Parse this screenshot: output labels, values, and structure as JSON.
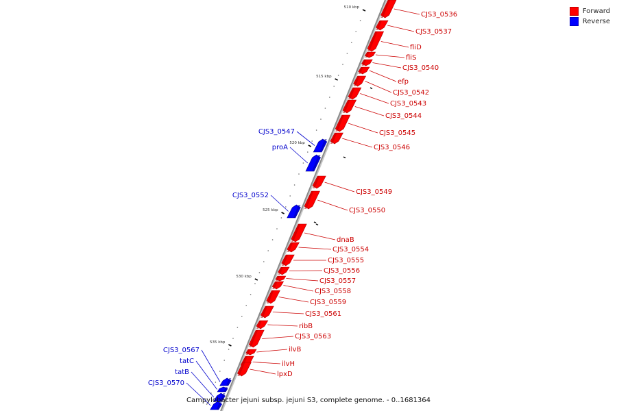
{
  "title": "Campylobacter jejuni subsp. jejuni S3, complete genome. - 0..1681364",
  "legend": [
    {
      "label": "Forward",
      "color": "#ff0000"
    },
    {
      "label": "Reverse",
      "color": "#0000ff"
    }
  ],
  "ticks": [
    "510 kbp",
    "515 kbp",
    "520 kbp",
    "525 kbp",
    "530 kbp",
    "535 kbp"
  ],
  "colors": {
    "forward": "#ff0000",
    "reverse": "#0000ff",
    "backbone": "#8a8a8a",
    "forward_label": "#cc0000",
    "reverse_label": "#0000cc"
  },
  "genes": [
    {
      "name": "CJS3_0536",
      "strand": "forward"
    },
    {
      "name": "CJS3_0537",
      "strand": "forward"
    },
    {
      "name": "fliD",
      "strand": "forward"
    },
    {
      "name": "fliS",
      "strand": "forward"
    },
    {
      "name": "CJS3_0540",
      "strand": "forward"
    },
    {
      "name": "efp",
      "strand": "forward"
    },
    {
      "name": "CJS3_0542",
      "strand": "forward"
    },
    {
      "name": "CJS3_0543",
      "strand": "forward"
    },
    {
      "name": "CJS3_0544",
      "strand": "forward"
    },
    {
      "name": "CJS3_0545",
      "strand": "forward"
    },
    {
      "name": "CJS3_0546",
      "strand": "forward"
    },
    {
      "name": "CJS3_0547",
      "strand": "reverse"
    },
    {
      "name": "proA",
      "strand": "reverse"
    },
    {
      "name": "CJS3_0549",
      "strand": "forward"
    },
    {
      "name": "CJS3_0550",
      "strand": "forward"
    },
    {
      "name": "CJS3_0552",
      "strand": "reverse"
    },
    {
      "name": "dnaB",
      "strand": "forward"
    },
    {
      "name": "CJS3_0554",
      "strand": "forward"
    },
    {
      "name": "CJS3_0555",
      "strand": "forward"
    },
    {
      "name": "CJS3_0556",
      "strand": "forward"
    },
    {
      "name": "CJS3_0557",
      "strand": "forward"
    },
    {
      "name": "CJS3_0558",
      "strand": "forward"
    },
    {
      "name": "CJS3_0559",
      "strand": "forward"
    },
    {
      "name": "CJS3_0561",
      "strand": "forward"
    },
    {
      "name": "ribB",
      "strand": "forward"
    },
    {
      "name": "CJS3_0563",
      "strand": "forward"
    },
    {
      "name": "ilvB",
      "strand": "forward"
    },
    {
      "name": "ilvH",
      "strand": "forward"
    },
    {
      "name": "lpxD",
      "strand": "forward"
    },
    {
      "name": "CJS3_0567",
      "strand": "reverse"
    },
    {
      "name": "tatC",
      "strand": "reverse"
    },
    {
      "name": "tatB",
      "strand": "reverse"
    },
    {
      "name": "CJS3_0570",
      "strand": "reverse"
    }
  ]
}
